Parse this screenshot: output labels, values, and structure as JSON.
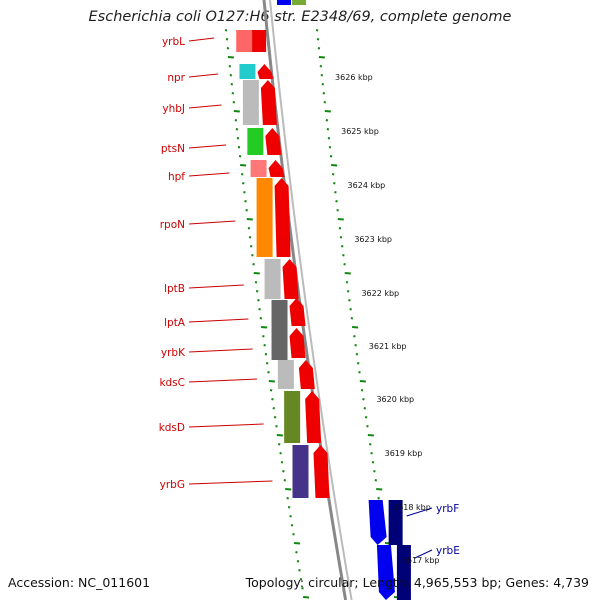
{
  "title": "Escherichia coli O127:H6 str. E2348/69, complete genome",
  "footer": {
    "accession": "Accession: NC_011601",
    "topology": "Topology: circular; Length: 4,965,553 bp; Genes: 4,739"
  },
  "colors": {
    "gene_label_reverse": "#cc0000",
    "gene_label_forward": "#000099",
    "tick_green": "#118811",
    "arrow_red": "#ee0000",
    "arrow_blue": "#0000ee",
    "arrow_navy": "#000077",
    "backbone": "#888888"
  },
  "kbp_ticks": [
    "3626 kbp",
    "3625 kbp",
    "3624 kbp",
    "3623 kbp",
    "3622 kbp",
    "3621 kbp",
    "3620 kbp",
    "3619 kbp",
    "3618 kbp",
    "3617 kbp"
  ],
  "genes_reverse": [
    {
      "name": "yrbL",
      "color": "#ff6666"
    },
    {
      "name": "npr",
      "color": "#22cccc"
    },
    {
      "name": "yhbJ",
      "color": "#bbbbbb"
    },
    {
      "name": "ptsN",
      "color": "#22cc22"
    },
    {
      "name": "hpf",
      "color": "#ff7777"
    },
    {
      "name": "rpoN",
      "color": "#ff8800"
    },
    {
      "name": "lptB",
      "color": "#bbbbbb"
    },
    {
      "name": "lptA",
      "color": "#666666"
    },
    {
      "name": "yrbK",
      "color": "#666666"
    },
    {
      "name": "kdsC",
      "color": "#bbbbbb"
    },
    {
      "name": "kdsD",
      "color": "#668822"
    },
    {
      "name": "yrbG",
      "color": "#443388"
    }
  ],
  "genes_forward": [
    {
      "name": "yrbF",
      "color": "#0000ee"
    },
    {
      "name": "yrbE",
      "color": "#000088"
    }
  ]
}
